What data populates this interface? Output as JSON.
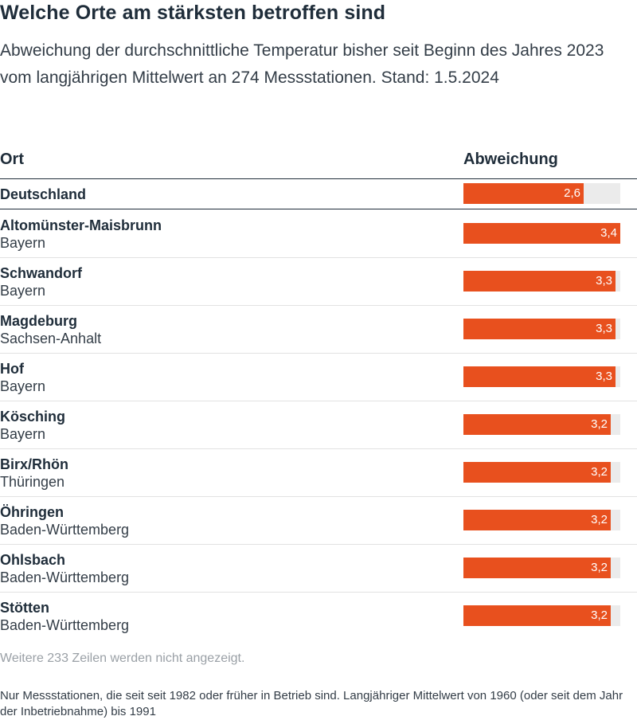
{
  "title": "Welche Orte am stärksten betroffen sind",
  "subtitle": "Abweichung der durchschnittliche Temperatur bisher seit Beginn des Jahres 2023 vom langjährigen Mittelwert an 274 Messstationen. Stand: 1.5.2024",
  "columns": {
    "ort": "Ort",
    "abweichung": "Abweichung"
  },
  "colors": {
    "bar": "#e8501e",
    "track": "#ebebeb",
    "text": "#1f2d3a"
  },
  "chart_data": {
    "type": "bar",
    "orientation": "horizontal",
    "xlim": [
      0,
      3.4
    ],
    "rows": [
      {
        "name": "Deutschland",
        "state": "",
        "value": 2.6,
        "label": "2,6"
      },
      {
        "name": "Altomünster-Maisbrunn",
        "state": "Bayern",
        "value": 3.4,
        "label": "3,4"
      },
      {
        "name": "Schwandorf",
        "state": "Bayern",
        "value": 3.3,
        "label": "3,3"
      },
      {
        "name": "Magdeburg",
        "state": "Sachsen-Anhalt",
        "value": 3.3,
        "label": "3,3"
      },
      {
        "name": "Hof",
        "state": "Bayern",
        "value": 3.3,
        "label": "3,3"
      },
      {
        "name": "Kösching",
        "state": "Bayern",
        "value": 3.2,
        "label": "3,2"
      },
      {
        "name": "Birx/Rhön",
        "state": "Thüringen",
        "value": 3.2,
        "label": "3,2"
      },
      {
        "name": "Öhringen",
        "state": "Baden-Württemberg",
        "value": 3.2,
        "label": "3,2"
      },
      {
        "name": "Ohlsbach",
        "state": "Baden-Württemberg",
        "value": 3.2,
        "label": "3,2"
      },
      {
        "name": "Stötten",
        "state": "Baden-Württemberg",
        "value": 3.2,
        "label": "3,2"
      }
    ]
  },
  "more_rows_text": "Weitere 233 Zeilen werden nicht angezeigt.",
  "footnote": "Nur Messstationen, die seit seit 1982 oder früher in Betrieb sind. Langjähriger Mittelwert von 1960 (oder seit dem Jahr der Inbetriebnahme) bis 1991"
}
